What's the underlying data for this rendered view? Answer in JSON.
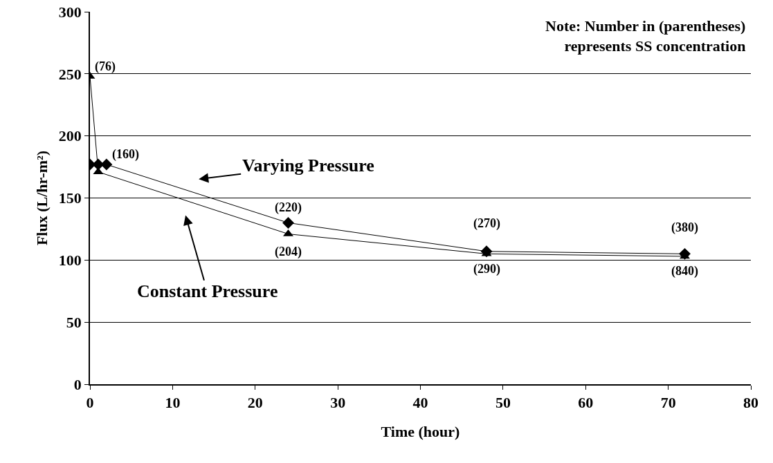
{
  "chart_data": {
    "type": "line",
    "xlabel": "Time (hour)",
    "ylabel": "Flux (L/hr-m²)",
    "series": [
      {
        "color": "#000000",
        "marker": "diamond",
        "x": [
          0,
          1,
          2,
          24,
          48,
          72
        ],
        "values": [
          177,
          177,
          177,
          130,
          107,
          105
        ]
      },
      {
        "color": "#000000",
        "marker": "triangle",
        "x": [
          0,
          1,
          24,
          48,
          72
        ],
        "values": [
          248,
          171,
          121,
          105,
          103
        ]
      }
    ],
    "annotations": [
      "Note: Number in (parentheses)\nrepresents SS concentration",
      {
        "text": "(76)",
        "x": 0,
        "y": 248
      },
      {
        "text": "(160)",
        "x": 2,
        "y": 177
      },
      {
        "text": "(220)",
        "x": 24,
        "y": 130
      },
      {
        "text": "(204)",
        "x": 24,
        "y": 121
      },
      {
        "text": "(270)",
        "x": 48,
        "y": 107
      },
      {
        "text": "(290)",
        "x": 48,
        "y": 105
      },
      {
        "text": "(380)",
        "x": 72,
        "y": 105
      },
      {
        "text": "(840)",
        "x": 72,
        "y": 103
      },
      "Varying Pressure",
      "Constant Pressure"
    ],
    "xlim": [
      0,
      80
    ],
    "xticks": [
      0,
      10,
      20,
      30,
      40,
      50,
      60,
      70,
      80
    ],
    "ylim": [
      0,
      300
    ],
    "yticks": [
      0,
      50,
      100,
      150,
      200,
      250,
      300
    ],
    "grid": "y"
  }
}
